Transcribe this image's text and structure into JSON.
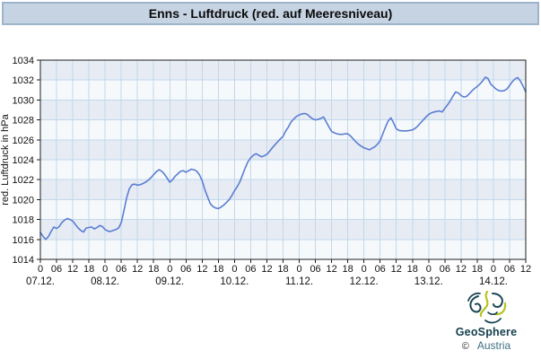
{
  "title": "Enns - Luftdruck (red. auf Meeresniveau)",
  "branding": {
    "copyright": "©",
    "name": "GeoSphere",
    "country": "Austria"
  },
  "colors": {
    "titlebar_bg": "#c6d3e2",
    "titlebar_border": "#9db4ca",
    "band_light": "#f6f9fb",
    "band_dark": "#e6ebf4",
    "grid": "#c2d8eb",
    "frame": "#1f1f1f",
    "line": "#5b7ed2",
    "text": "#111111"
  },
  "chart_data": {
    "type": "line",
    "title": "Enns - Luftdruck (red. auf Meeresniveau)",
    "xlabel": "",
    "ylabel": "red. Luftdruck in hPa",
    "ylim": [
      1014,
      1034
    ],
    "y_ticks": [
      1014,
      1016,
      1018,
      1020,
      1022,
      1024,
      1026,
      1028,
      1030,
      1032,
      1034
    ],
    "grid": true,
    "legend": "none",
    "x_hours_total": 180,
    "x_tick_interval_hours": 6,
    "x_hour_labels": [
      "0",
      "06",
      "12",
      "18",
      "0",
      "06",
      "12",
      "18",
      "0",
      "06",
      "12",
      "18",
      "0",
      "06",
      "12",
      "18",
      "0",
      "06",
      "12",
      "18",
      "0",
      "06",
      "12",
      "18",
      "0",
      "06",
      "12",
      "18",
      "0",
      "06",
      "12"
    ],
    "day_labels": [
      "07.12.",
      "08.12.",
      "09.12.",
      "10.12.",
      "11.12.",
      "12.12.",
      "13.12.",
      "14.12."
    ],
    "day_label_hour_offsets": [
      0,
      24,
      48,
      72,
      96,
      120,
      144,
      168
    ],
    "series": [
      {
        "name": "red. Luftdruck in hPa",
        "start": "07.12. 00:00",
        "step_hours": 1,
        "values": [
          1016.7,
          1016.3,
          1016.0,
          1016.3,
          1016.8,
          1017.25,
          1017.1,
          1017.3,
          1017.7,
          1017.95,
          1018.1,
          1018.0,
          1017.85,
          1017.5,
          1017.15,
          1016.9,
          1016.75,
          1017.15,
          1017.2,
          1017.25,
          1017.05,
          1017.2,
          1017.4,
          1017.3,
          1017.0,
          1016.85,
          1016.8,
          1016.9,
          1017.0,
          1017.15,
          1017.7,
          1018.9,
          1020.2,
          1021.1,
          1021.5,
          1021.55,
          1021.45,
          1021.5,
          1021.6,
          1021.75,
          1021.95,
          1022.2,
          1022.5,
          1022.8,
          1023.0,
          1022.85,
          1022.55,
          1022.15,
          1021.75,
          1022.0,
          1022.35,
          1022.6,
          1022.85,
          1022.9,
          1022.75,
          1022.9,
          1023.05,
          1023.0,
          1022.85,
          1022.5,
          1021.9,
          1021.0,
          1020.3,
          1019.6,
          1019.3,
          1019.15,
          1019.1,
          1019.25,
          1019.45,
          1019.7,
          1020.0,
          1020.4,
          1020.9,
          1021.3,
          1021.8,
          1022.5,
          1023.2,
          1023.8,
          1024.2,
          1024.45,
          1024.6,
          1024.45,
          1024.3,
          1024.4,
          1024.55,
          1024.85,
          1025.2,
          1025.5,
          1025.8,
          1026.1,
          1026.35,
          1026.9,
          1027.3,
          1027.8,
          1028.1,
          1028.35,
          1028.5,
          1028.6,
          1028.65,
          1028.55,
          1028.3,
          1028.1,
          1028.0,
          1028.05,
          1028.15,
          1028.3,
          1027.8,
          1027.3,
          1026.85,
          1026.7,
          1026.6,
          1026.55,
          1026.55,
          1026.6,
          1026.6,
          1026.4,
          1026.1,
          1025.8,
          1025.55,
          1025.35,
          1025.2,
          1025.1,
          1025.0,
          1025.15,
          1025.3,
          1025.55,
          1025.9,
          1026.6,
          1027.3,
          1027.9,
          1028.2,
          1027.7,
          1027.1,
          1026.95,
          1026.9,
          1026.9,
          1026.9,
          1026.95,
          1027.0,
          1027.15,
          1027.4,
          1027.7,
          1028.0,
          1028.3,
          1028.55,
          1028.7,
          1028.8,
          1028.85,
          1028.9,
          1028.8,
          1029.15,
          1029.5,
          1029.9,
          1030.4,
          1030.8,
          1030.7,
          1030.45,
          1030.3,
          1030.35,
          1030.6,
          1030.9,
          1031.15,
          1031.35,
          1031.6,
          1031.9,
          1032.3,
          1032.15,
          1031.6,
          1031.35,
          1031.1,
          1030.95,
          1030.9,
          1030.95,
          1031.1,
          1031.45,
          1031.85,
          1032.1,
          1032.25,
          1031.9,
          1031.4,
          1030.8
        ]
      }
    ]
  }
}
